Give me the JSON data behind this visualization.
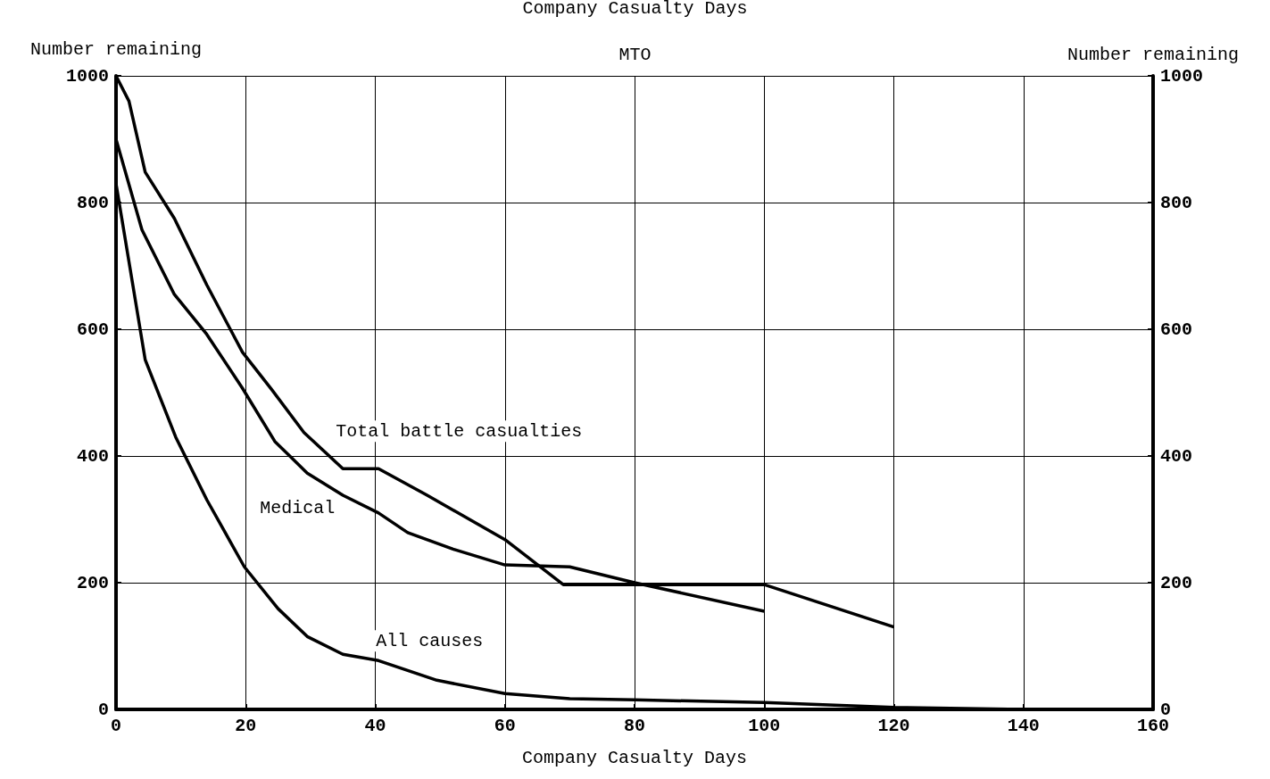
{
  "chart_data": {
    "type": "line",
    "title": "Company Casualty Days",
    "subtitle": "MTO",
    "xlabel": "Company Casualty Days",
    "ylabel": "Number remaining",
    "y2label": "Number remaining",
    "xlim": [
      0,
      160
    ],
    "xticks": [
      0,
      20,
      40,
      60,
      80,
      100,
      120,
      140,
      160
    ],
    "ylim": [
      0,
      1000
    ],
    "yticks": [
      0,
      200,
      400,
      600,
      800,
      1000
    ],
    "y2lim": [
      0,
      1000
    ],
    "y2ticks": [
      0,
      200,
      400,
      600,
      800,
      1000
    ],
    "grid": true,
    "legend": false,
    "line_style": "solid",
    "series": [
      {
        "name": "Total battle casualties",
        "color": "#000000",
        "x": [
          0,
          2,
          4.5,
          9,
          14,
          19.5,
          24,
          29,
          35,
          40.5,
          48,
          60,
          69,
          100,
          120
        ],
        "values": [
          1000,
          960,
          848,
          775,
          670,
          564,
          505,
          437,
          380,
          380,
          338,
          268,
          197,
          197,
          130
        ]
      },
      {
        "name": "Medical",
        "color": "#000000",
        "x": [
          0,
          4,
          9,
          14,
          19.5,
          24.5,
          29.5,
          35,
          40.5,
          45,
          52,
          60,
          70,
          80,
          100
        ],
        "values": [
          900,
          757,
          655,
          592,
          507,
          423,
          373,
          338,
          310,
          279,
          253,
          228,
          225,
          200,
          155
        ]
      },
      {
        "name": "All causes",
        "color": "#000000",
        "x": [
          0,
          4.5,
          9.2,
          14,
          19.8,
          25,
          29.5,
          35,
          40.5,
          49.5,
          60,
          70,
          80,
          100,
          120,
          140,
          160
        ],
        "values": [
          830,
          552,
          430,
          331,
          225,
          159,
          115,
          87,
          77,
          46,
          25,
          17,
          15,
          11,
          3,
          0,
          0
        ]
      }
    ]
  }
}
